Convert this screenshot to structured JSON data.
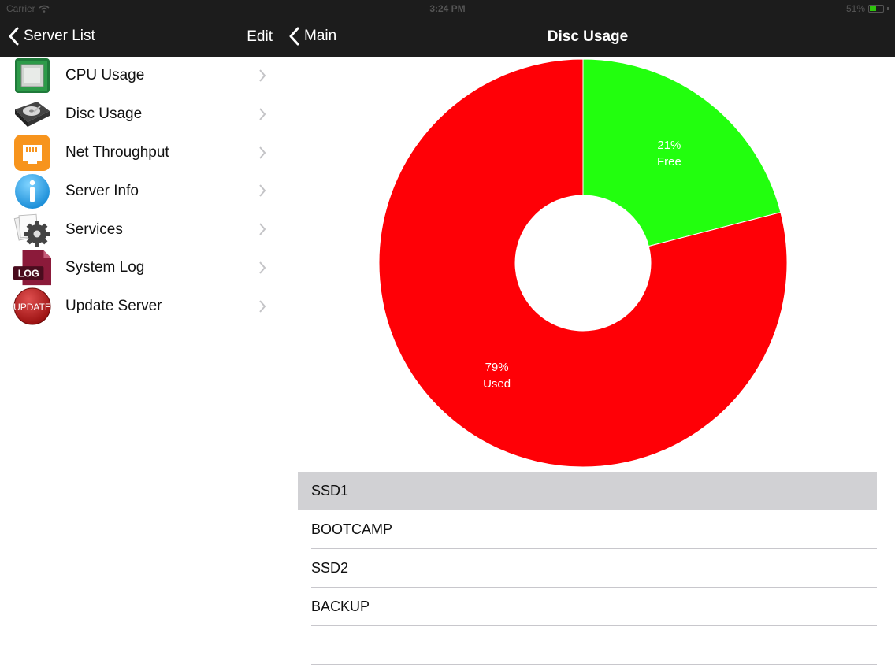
{
  "status_bar": {
    "carrier": "Carrier",
    "time": "3:24 PM",
    "battery": "51%"
  },
  "master": {
    "back_label": "Server List",
    "edit_label": "Edit",
    "items": [
      {
        "label": "CPU Usage",
        "icon": "cpu-chip-icon"
      },
      {
        "label": "Disc Usage",
        "icon": "hard-disk-icon"
      },
      {
        "label": "Net Throughput",
        "icon": "ethernet-port-icon"
      },
      {
        "label": "Server Info",
        "icon": "info-icon"
      },
      {
        "label": "Services",
        "icon": "gear-icon"
      },
      {
        "label": "System Log",
        "icon": "log-file-icon"
      },
      {
        "label": "Update Server",
        "icon": "update-icon"
      }
    ]
  },
  "detail": {
    "back_label": "Main",
    "title": "Disc Usage",
    "discs": [
      {
        "name": "SSD1",
        "selected": true
      },
      {
        "name": "BOOTCAMP",
        "selected": false
      },
      {
        "name": "SSD2",
        "selected": false
      },
      {
        "name": "BACKUP",
        "selected": false
      }
    ]
  },
  "chart_data": {
    "type": "pie",
    "variant": "donut",
    "series": [
      {
        "name": "Free",
        "value": 21,
        "label": "21%",
        "color": "#22ff0e"
      },
      {
        "name": "Used",
        "value": 79,
        "label": "79%",
        "color": "#ff0006"
      }
    ]
  },
  "colors": {
    "bar": "#1c1c1c",
    "selected_row": "#d1d1d4",
    "free": "#22ff0e",
    "used": "#ff0006"
  }
}
